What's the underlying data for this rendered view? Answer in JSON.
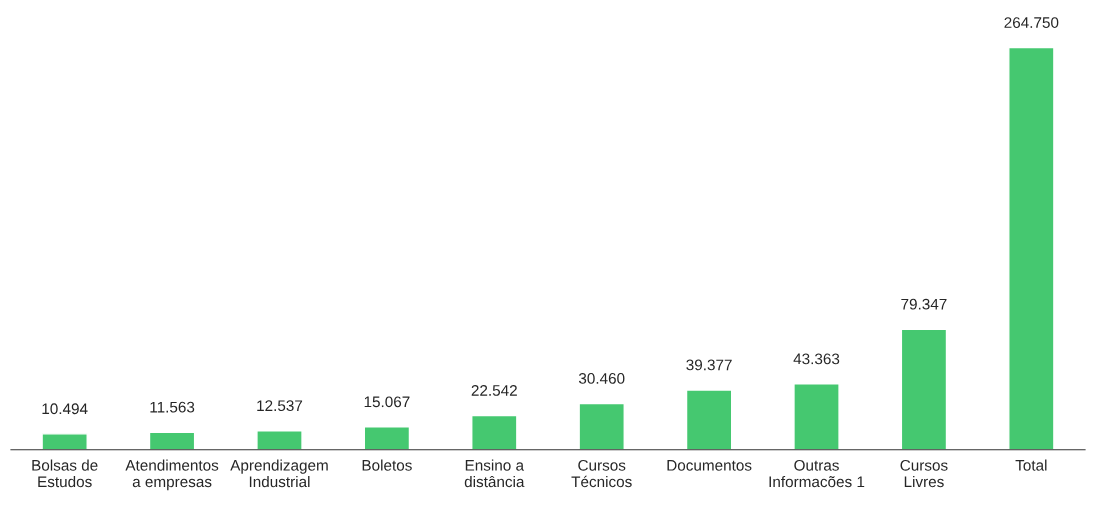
{
  "chart_data": {
    "type": "bar",
    "categories": [
      "Bolsas de\nEstudos",
      "Atendimentos\na empresas",
      "Aprendizagem\nIndustrial",
      "Boletos",
      "Ensino a\ndistância",
      "Cursos\nTécnicos",
      "Documentos",
      "Outras\nInformacões 1",
      "Cursos\nLivres",
      "Total"
    ],
    "values": [
      10494,
      11563,
      12537,
      15067,
      22542,
      30460,
      39377,
      43363,
      79347,
      264750
    ],
    "value_labels": [
      "10.494",
      "11.563",
      "12.537",
      "15.067",
      "22.542",
      "30.460",
      "39.377",
      "43.363",
      "79.347",
      "264.750"
    ],
    "color": "#45c870",
    "grid": false,
    "legend": false,
    "tick_labels": "x"
  }
}
